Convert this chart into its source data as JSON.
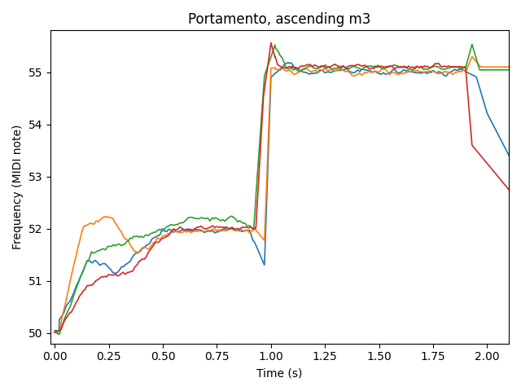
{
  "title": "Portamento, ascending m3",
  "xlabel": "Time (s)",
  "ylabel": "Frequency (MIDI note)",
  "xlim": [
    -0.02,
    2.1
  ],
  "ylim": [
    49.8,
    55.8
  ],
  "xticks": [
    0.0,
    0.25,
    0.5,
    0.75,
    1.0,
    1.25,
    1.5,
    1.75,
    2.0
  ],
  "yticks": [
    50,
    51,
    52,
    53,
    54,
    55
  ],
  "figsize": [
    6.4,
    4.8
  ],
  "dpi": 100,
  "colors": [
    "#1f77b4",
    "#ff7f0e",
    "#2ca02c",
    "#d62728"
  ],
  "linewidth": 1.2
}
